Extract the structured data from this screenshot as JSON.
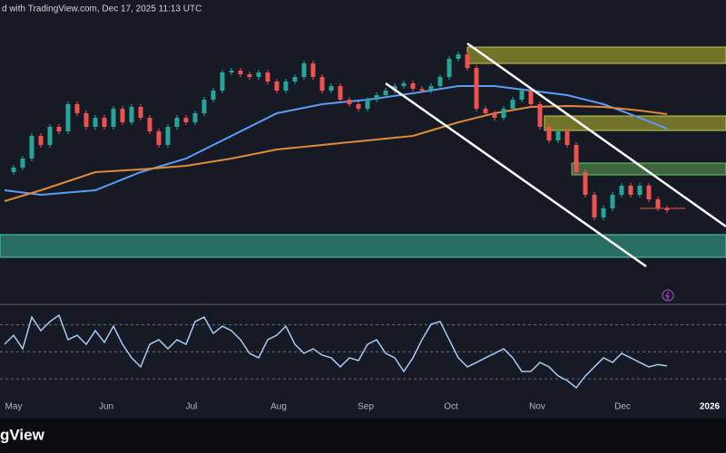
{
  "header": "d with TradingView.com, Dec 17, 2025 11:13 UTC",
  "brand": "gView",
  "chart_data": [
    {
      "type": "candlestick",
      "values": [
        110,
        115,
        125,
        150,
        140,
        160,
        155,
        185,
        175,
        160,
        170,
        160,
        180,
        165,
        182,
        170,
        155,
        140,
        160,
        170,
        165,
        175,
        190,
        200,
        220,
        222,
        218,
        215,
        220,
        210,
        200,
        210,
        215,
        230,
        215,
        200,
        205,
        190,
        185,
        180,
        190,
        195,
        200,
        205,
        208,
        202,
        200,
        205,
        215,
        235,
        240,
        225,
        180,
        175,
        170,
        180,
        190,
        200,
        185,
        160,
        145,
        155,
        140,
        110,
        85,
        60,
        70,
        85,
        95,
        85,
        95,
        80,
        70,
        68
      ],
      "up_color": "#26a69a",
      "down_color": "#ef5350",
      "ylim": [
        0,
        300
      ],
      "xlim": [
        -0.5,
        79.5
      ],
      "xticks": [
        {
          "value": 1,
          "label": "May"
        },
        {
          "value": 11.2,
          "label": "Jun"
        },
        {
          "value": 20.6,
          "label": "Jul"
        },
        {
          "value": 30.2,
          "label": "Aug"
        },
        {
          "value": 39.8,
          "label": "Sep"
        },
        {
          "value": 49.2,
          "label": "Oct"
        },
        {
          "value": 58.7,
          "label": "Nov"
        },
        {
          "value": 68.1,
          "label": "Dec"
        },
        {
          "value": 77.7,
          "label": "2026"
        }
      ],
      "series": [
        {
          "color": "#5b9cf6",
          "x": [
            0,
            4,
            10,
            15,
            20,
            25,
            30,
            35,
            40,
            45,
            50,
            54,
            58,
            62,
            66,
            70,
            73
          ],
          "values": [
            90,
            85,
            90,
            110,
            125,
            150,
            175,
            185,
            190,
            197,
            205,
            205,
            200,
            195,
            185,
            170,
            158
          ]
        },
        {
          "color": "#e08a3a",
          "x": [
            0,
            4,
            10,
            15,
            20,
            25,
            30,
            35,
            40,
            45,
            50,
            54,
            58,
            62,
            66,
            70,
            73
          ],
          "values": [
            78,
            90,
            110,
            113,
            117,
            125,
            135,
            140,
            145,
            150,
            165,
            175,
            182,
            183,
            182,
            178,
            174
          ]
        }
      ]
    },
    {
      "type": "line",
      "color": "#a9c8f2",
      "values": [
        55.5,
        62.2,
        52.2,
        75.6,
        65.6,
        72.3,
        77,
        58.9,
        62.2,
        55.5,
        65.6,
        56.9,
        68.9,
        55.5,
        45.5,
        38.8,
        55.5,
        58.9,
        52.2,
        58.9,
        55.5,
        72.3,
        75.6,
        63.6,
        68.9,
        65.6,
        58.9,
        48.8,
        45.5,
        58.9,
        62.2,
        68.9,
        55.5,
        48.8,
        52.2,
        47.5,
        45.5,
        38.8,
        45.5,
        43.5,
        55.5,
        58.9,
        48.8,
        45.5,
        35.4,
        45.5,
        58.9,
        70.3,
        72.3,
        58.9,
        45.5,
        38.8,
        42.1,
        45.5,
        48.8,
        52.2,
        45.5,
        35.4,
        35.4,
        42.1,
        38.8,
        32.1,
        28.7,
        23.4,
        32.1,
        38.8,
        45.5,
        42.1,
        48.8,
        45.5,
        42.1,
        38.8,
        40.5,
        39.5
      ],
      "ylim": [
        20,
        85
      ],
      "xlim": [
        -0.5,
        79.5
      ],
      "grid_levels": [
        30,
        50,
        70
      ]
    }
  ]
}
